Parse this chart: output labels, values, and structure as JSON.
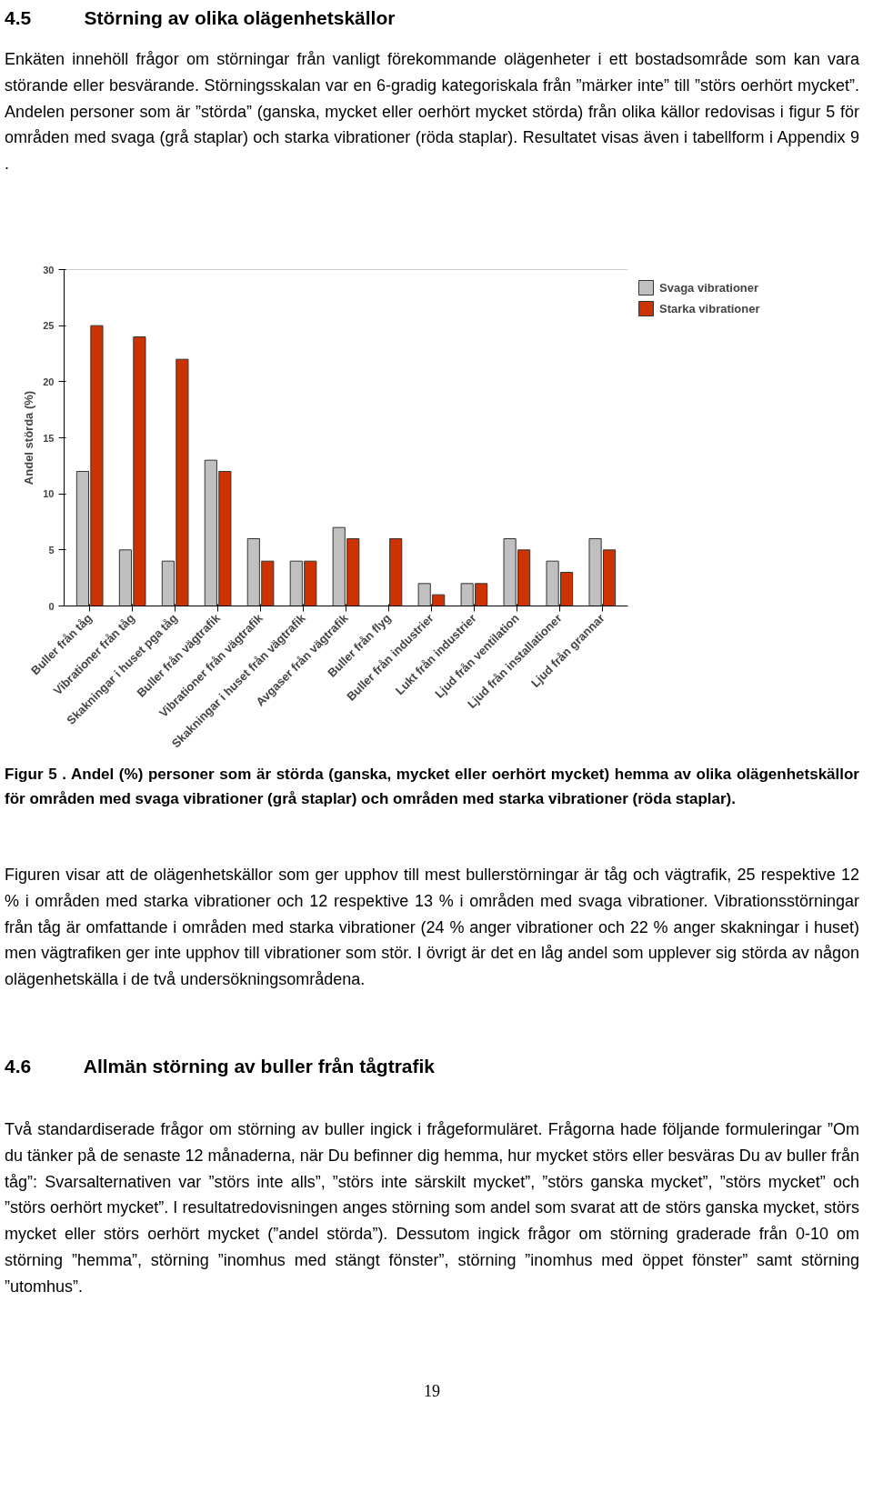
{
  "chart_data": {
    "type": "bar",
    "title": "4.5          Störning av olika olägenhetskällor",
    "subtitle": "Enkäten innehöll frågor om störningar från vanligt förekommande olägenheter i ett bostadsområde som kan vara störande eller besvärande. Störningsskalan var en 6-gradig kategoriskala från ”märker inte” till ”störs oerhört mycket”. Andelen personer som är ”störda” (ganska, mycket eller oerhört mycket störda) från olika källor redovisas i figur 5 för områden med svaga (grå staplar) och starka vibrationer (röda staplar). Resultatet visas även i tabellform i Appendix 9 .",
    "ylabel": "Andel störda (%)",
    "categories": [
      "Buller från tåg",
      "Vibrationer från tåg",
      "Skakningar i huset pga tåg",
      "Buller från vägtrafik",
      "Vibrationer från vägtrafik",
      "Skakningar i huset från vägtrafik",
      "Avgaser från vägtrafik",
      "Buller från flyg",
      "Buller från industrier",
      "Lukt från industrier",
      "Ljud från ventilation",
      "Ljud från installationer",
      "Ljud från grannar"
    ],
    "series": [
      {
        "name": "Svaga vibrationer",
        "color": "#c0c0c0",
        "values": [
          12,
          5,
          4,
          13,
          6,
          4,
          7,
          null,
          2,
          2,
          6,
          4,
          6
        ]
      },
      {
        "name": "Starka vibrationer",
        "color": "#cc3300",
        "values": [
          25,
          24,
          22,
          12,
          4,
          4,
          6,
          6,
          1,
          2,
          5,
          3,
          5
        ]
      }
    ],
    "ylim": [
      0,
      30
    ],
    "yticks": [
      0,
      5,
      10,
      15,
      20,
      25,
      30
    ],
    "grid": false,
    "legend": "top right",
    "annotations": [
      "Figur 5 . Andel (%) personer som är störda (ganska, mycket eller oerhört mycket) hemma av olika olägenhetskällor för områden med svaga vibrationer (grå staplar) och områden med starka vibrationer (röda staplar).",
      "Figuren visar att de olägenhetskällor som ger upphov till mest bullerstörningar är tåg och vägtrafik, 25 respektive 12 % i områden med starka vibrationer och 12 respektive 13 % i områden med svaga vibrationer. Vibrationsstörningar från tåg är omfattande i områden med starka vibrationer (24 % anger vibrationer och 22 % anger skakningar i huset) men vägtrafiken ger inte upphov till vibrationer som stör. I övrigt är det en låg andel som upplever sig störda av någon olägenhetskälla i de två undersökningsområdena.",
      "4.6          Allmän störning av buller från tågtrafik",
      "Två standardiserade frågor om störning av buller ingick i frågeformuläret. Frågorna hade följande formuleringar ”Om du tänker på de senaste 12 månaderna, när Du befinner dig hemma, hur mycket störs eller besväras Du av buller från tåg”: Svarsalternativen var ”störs inte alls”, ”störs inte särskilt mycket”, ”störs ganska mycket”, ”störs mycket” och ”störs oerhört mycket”. I resultatredovisningen anges störning som andel som svarat att de störs ganska mycket, störs mycket eller störs oerhört mycket (”andel störda”). Dessutom ingick frågor om störning graderade från 0-10 om störning ”hemma”, störning ”inomhus med stängt fönster”, störning ”inomhus med öppet fönster” samt störning ”utomhus”.",
      "19"
    ]
  }
}
